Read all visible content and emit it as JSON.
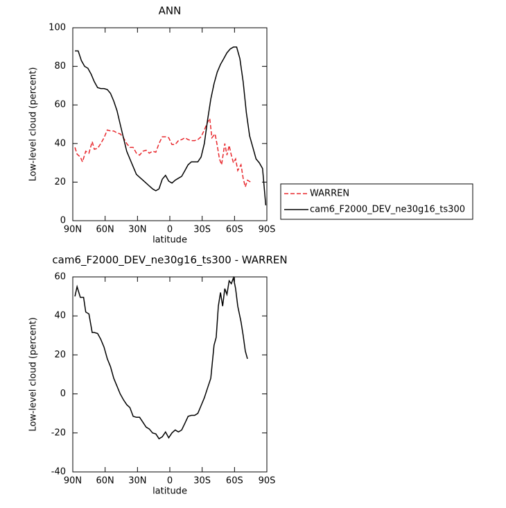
{
  "chart_data": [
    {
      "type": "line",
      "title": "ANN",
      "xlabel": "latitude",
      "ylabel": "Low-level cloud (percent)",
      "xlim": [
        90,
        -90
      ],
      "xticks": [
        {
          "value": 90,
          "label": "90N"
        },
        {
          "value": 60,
          "label": "60N"
        },
        {
          "value": 30,
          "label": "30N"
        },
        0,
        {
          "value": -30,
          "label": "30S"
        },
        {
          "value": -60,
          "label": "60S"
        },
        {
          "value": -90,
          "label": "90S"
        }
      ],
      "ylim": [
        0,
        100
      ],
      "yticks": [
        0,
        20,
        40,
        60,
        80,
        100
      ],
      "legend": "right",
      "series": [
        {
          "name": "WARREN",
          "color": "#e8262b",
          "dash": true,
          "x": [
            88,
            86,
            83,
            81,
            78,
            75,
            72,
            70,
            67,
            64,
            61,
            58,
            55,
            52,
            49,
            46,
            43,
            40,
            37,
            34,
            31,
            28,
            25,
            22,
            19,
            16,
            13,
            10,
            7,
            4,
            1,
            -2,
            -5,
            -8,
            -11,
            -14,
            -17,
            -20,
            -23,
            -26,
            -29,
            -32,
            -35,
            -37,
            -39,
            -42,
            -44,
            -46,
            -48,
            -51,
            -53,
            -55,
            -57,
            -59,
            -61,
            -63,
            -66,
            -68,
            -70,
            -72,
            -75
          ],
          "values": [
            38,
            34.5,
            33,
            30.5,
            36,
            35,
            41,
            37,
            37.5,
            40,
            43,
            47,
            46.5,
            46.5,
            45.5,
            45,
            43,
            40,
            38,
            38,
            35,
            34,
            36,
            36.5,
            35,
            36,
            35.5,
            40,
            43.5,
            43.5,
            43,
            39.5,
            39.5,
            41.5,
            42,
            43,
            42,
            41.5,
            41.5,
            42,
            43.5,
            47,
            51,
            53,
            43,
            45,
            39,
            32,
            29,
            40,
            34,
            39,
            34,
            30,
            32,
            26,
            29,
            22,
            17.5,
            21,
            20
          ]
        },
        {
          "name": "cam6_F2000_DEV_ne30g16_ts300",
          "color": "#000000",
          "dash": false,
          "x": [
            88,
            85,
            82,
            79,
            76,
            73,
            70,
            67,
            64,
            61,
            58,
            55,
            52,
            49,
            46,
            43,
            40,
            37,
            34,
            31,
            28,
            25,
            22,
            19,
            16,
            13,
            10,
            7,
            4,
            1,
            -2,
            -5,
            -8,
            -11,
            -14,
            -17,
            -20,
            -23,
            -26,
            -29,
            -32,
            -35,
            -38,
            -41,
            -44,
            -47,
            -50,
            -53,
            -56,
            -59,
            -62,
            -65,
            -68,
            -71,
            -74,
            -77,
            -80,
            -83,
            -86,
            -89
          ],
          "values": [
            88,
            88,
            83,
            80,
            79,
            76,
            72,
            69,
            68.5,
            68.5,
            68,
            66,
            62,
            57,
            50,
            43,
            36,
            32,
            28,
            24,
            22.5,
            21,
            19.5,
            18,
            16.5,
            15.5,
            16.5,
            21.5,
            23.5,
            20.5,
            19.5,
            21,
            22,
            23,
            26,
            29,
            30.5,
            30.5,
            30.5,
            33,
            40,
            52,
            63,
            71,
            77,
            81,
            84,
            87,
            89,
            90,
            90,
            84,
            72,
            56,
            44,
            38,
            32,
            30,
            27,
            8
          ]
        }
      ]
    },
    {
      "type": "line",
      "title": "cam6_F2000_DEV_ne30g16_ts300 - WARREN",
      "xlabel": "latitude",
      "ylabel": "Low-level cloud (percent)",
      "xlim": [
        90,
        -90
      ],
      "xticks": [
        {
          "value": 90,
          "label": "90N"
        },
        {
          "value": 60,
          "label": "60N"
        },
        {
          "value": 30,
          "label": "30N"
        },
        0,
        {
          "value": -30,
          "label": "30S"
        },
        {
          "value": -60,
          "label": "60S"
        },
        {
          "value": -90,
          "label": "90S"
        }
      ],
      "ylim": [
        -40,
        60
      ],
      "yticks": [
        -40,
        -20,
        0,
        20,
        40,
        60
      ],
      "color": "#000000",
      "x": [
        88,
        86,
        83,
        80,
        78,
        75,
        72,
        70,
        67,
        64,
        61,
        58,
        55,
        52,
        49,
        46,
        43,
        40,
        37,
        34,
        31,
        28,
        25,
        22,
        19,
        16,
        13,
        10,
        7,
        4,
        1,
        -2,
        -5,
        -8,
        -11,
        -14,
        -17,
        -20,
        -23,
        -26,
        -29,
        -32,
        -35,
        -38,
        -41,
        -43,
        -45,
        -47,
        -49,
        -51,
        -53,
        -55,
        -57,
        -59,
        -61,
        -63,
        -66,
        -68,
        -70,
        -72
      ],
      "values": [
        50,
        55,
        49.5,
        49.5,
        42,
        41,
        31.5,
        31.5,
        31,
        28,
        24,
        18,
        14,
        8,
        4,
        0,
        -3,
        -5.5,
        -7,
        -11.5,
        -12,
        -12,
        -14.5,
        -17,
        -18,
        -20,
        -20.5,
        -23,
        -22,
        -19.5,
        -22.5,
        -20,
        -18.5,
        -19.5,
        -18.5,
        -15,
        -11.5,
        -11,
        -11,
        -10,
        -6,
        -2,
        3,
        8,
        25,
        29,
        45,
        52,
        45,
        54,
        51,
        58,
        56.5,
        59.5,
        54,
        45,
        37,
        30,
        22,
        18
      ]
    }
  ]
}
